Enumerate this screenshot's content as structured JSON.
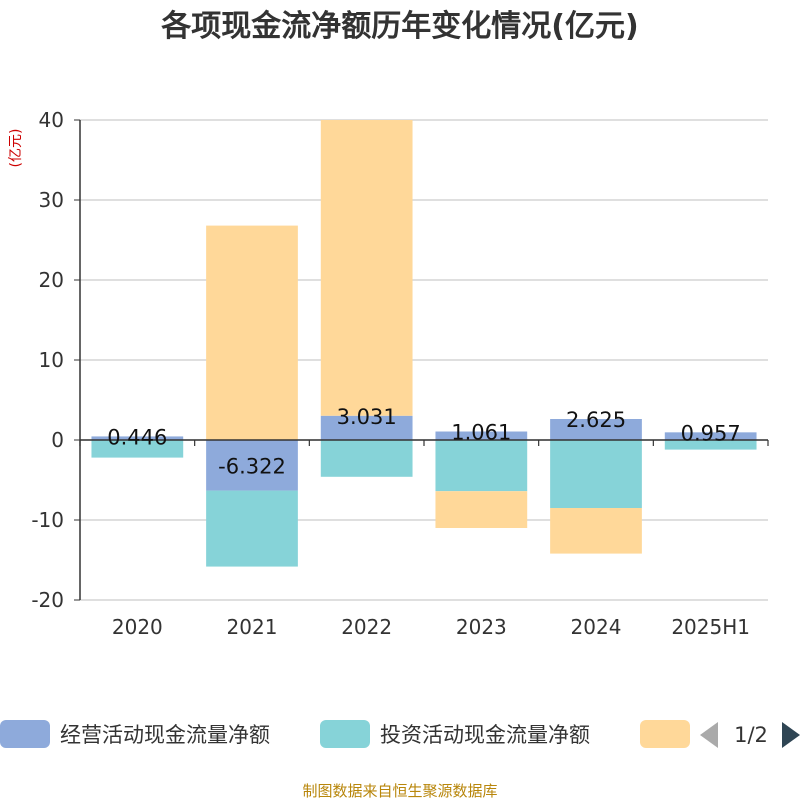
{
  "chart_data": {
    "type": "bar",
    "stacked": true,
    "title": "各项现金流净额历年变化情况(亿元)",
    "ylabel": "(亿元)",
    "categories": [
      "2020",
      "2021",
      "2022",
      "2023",
      "2024",
      "2025H1"
    ],
    "ylim": [
      -20,
      40
    ],
    "yticks": [
      40,
      30,
      20,
      10,
      0,
      -10,
      -20
    ],
    "grid": true,
    "series": [
      {
        "name": "经营活动现金流量净额",
        "color": "#8eaadb",
        "values": [
          0.446,
          -6.322,
          3.031,
          1.061,
          2.625,
          0.957
        ],
        "labels": [
          "0.446",
          "-6.322",
          "3.031",
          "1.061",
          "2.625",
          "0.957"
        ]
      },
      {
        "name": "投资活动现金流量净额",
        "color": "#86d3d8",
        "values": [
          -2.2,
          -9.5,
          -4.6,
          -6.4,
          -8.5,
          -1.2
        ]
      },
      {
        "name": "",
        "color": "#ffd899",
        "values": [
          0,
          26.8,
          37.0,
          -4.6,
          -5.7,
          0
        ]
      }
    ],
    "legend": {
      "position": "bottom",
      "page": "1/2"
    },
    "source": "制图数据来自恒生聚源数据库"
  }
}
